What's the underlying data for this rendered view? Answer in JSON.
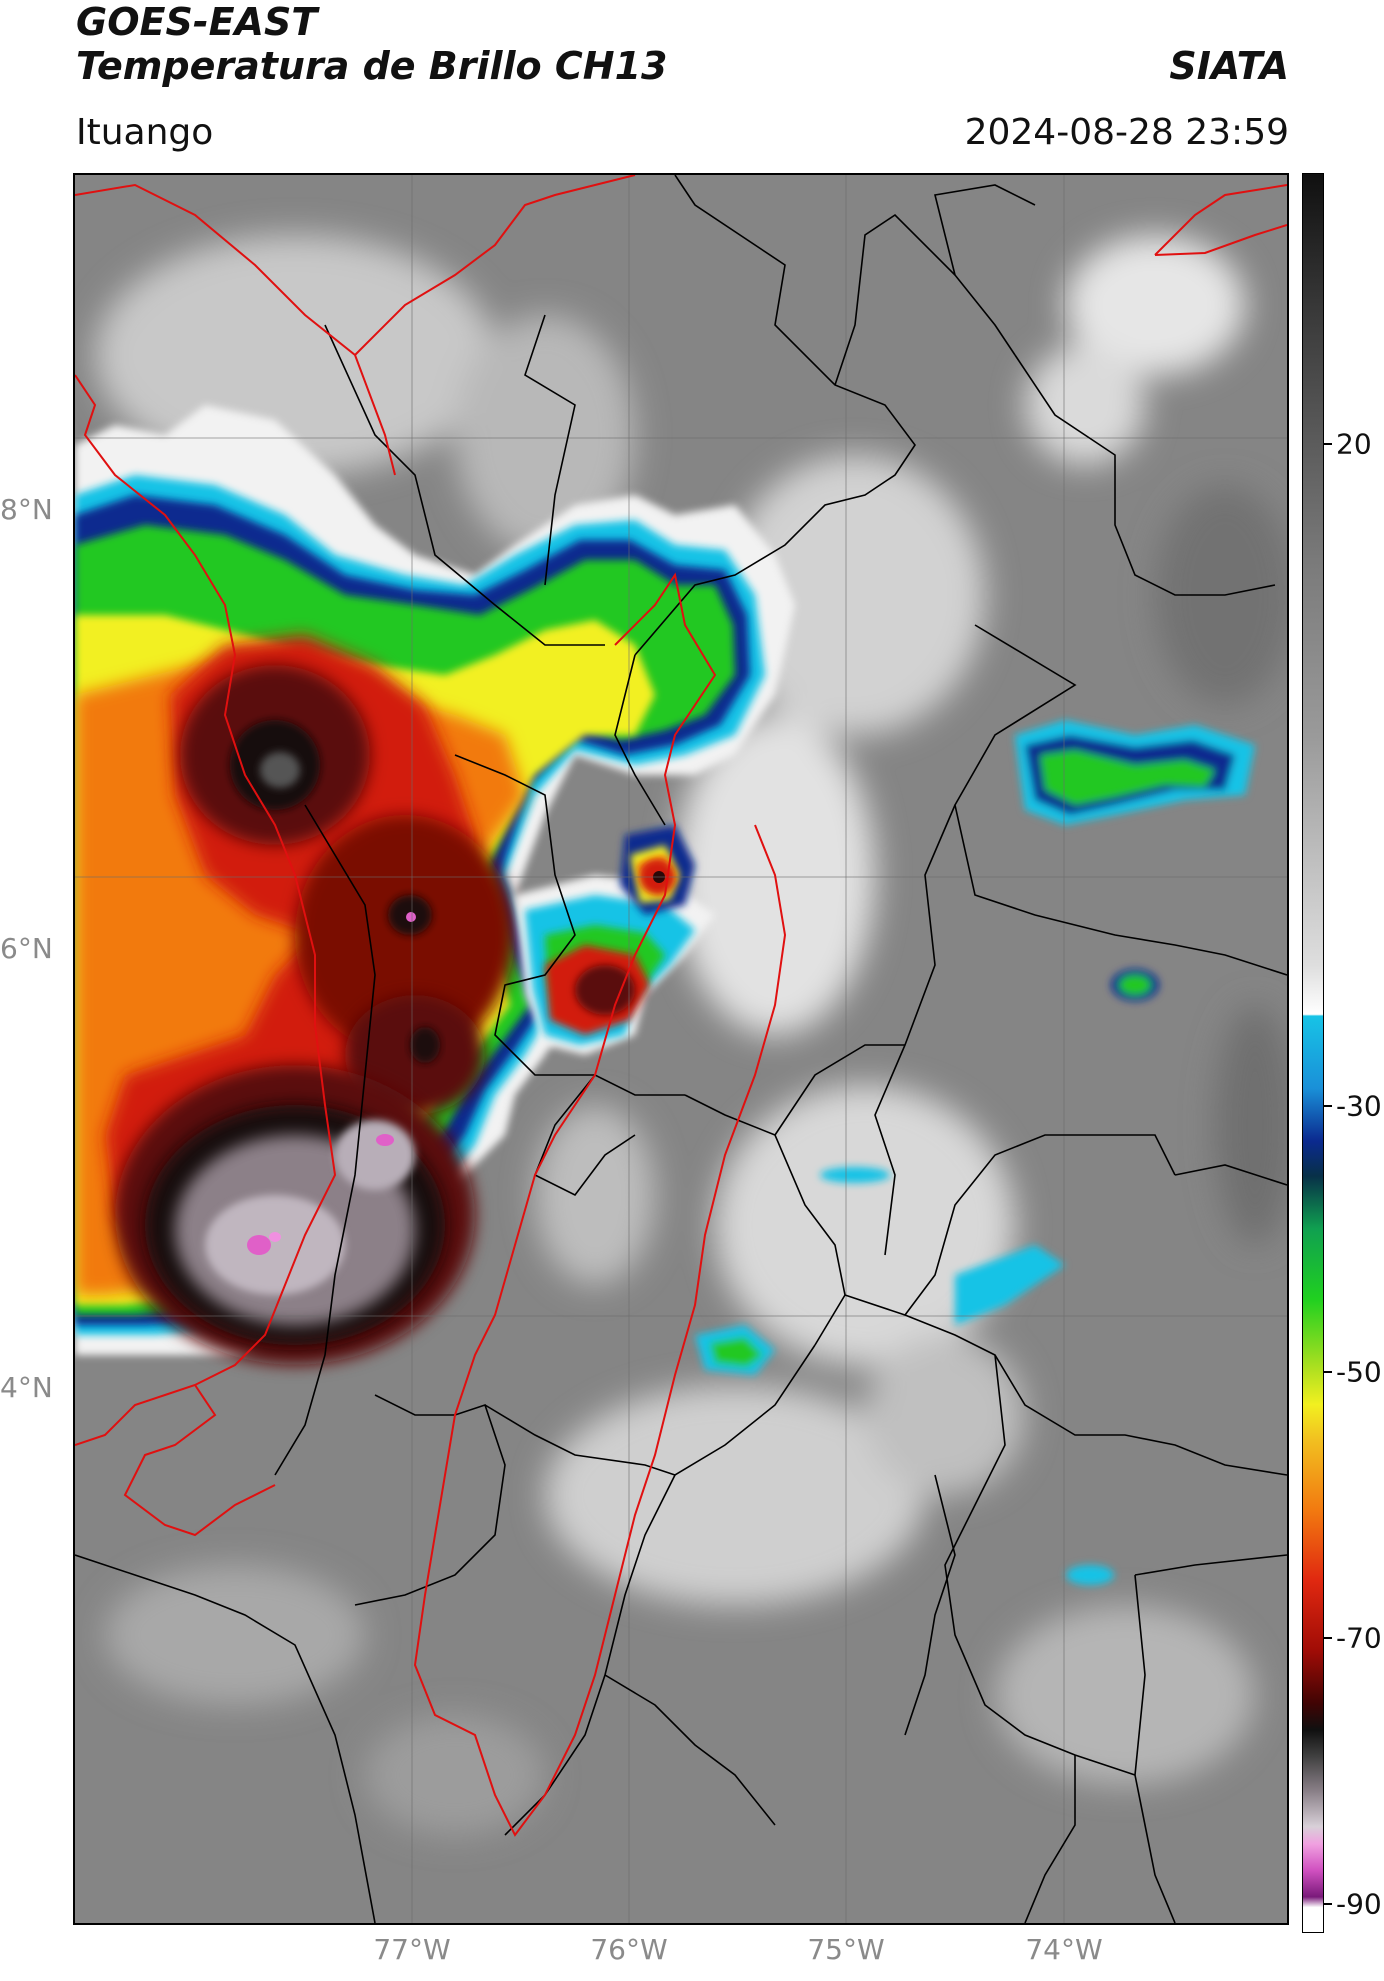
{
  "header": {
    "satellite": "GOES-EAST",
    "product": "Temperatura de Brillo CH13",
    "institution": "SIATA",
    "region": "Ituango",
    "timestamp": "2024-08-28 23:59"
  },
  "map": {
    "lat_ticks": [
      {
        "label": "8°N",
        "value": 8
      },
      {
        "label": "6°N",
        "value": 6
      },
      {
        "label": "4°N",
        "value": 4
      }
    ],
    "lon_ticks": [
      {
        "label": "77°W",
        "value": -77
      },
      {
        "label": "76°W",
        "value": -76
      },
      {
        "label": "75°W",
        "value": -75
      },
      {
        "label": "74°W",
        "value": -74
      }
    ],
    "extent": {
      "lon_min": -78.54,
      "lon_max": -72.96,
      "lat_min": 2.08,
      "lat_max": 10.03
    },
    "grid": true
  },
  "colorbar": {
    "ticks": [
      {
        "label": "20",
        "value": 20
      },
      {
        "label": "-30",
        "value": -30
      },
      {
        "label": "-50",
        "value": -50
      },
      {
        "label": "-70",
        "value": -70
      },
      {
        "label": "-90",
        "value": -90
      }
    ],
    "range": [
      -92,
      42
    ],
    "colors": {
      "warm": "#808080",
      "cold_white": "#f2f2f2",
      "cyan": "#17c3e6",
      "blue": "#0b2a8f",
      "green": "#20c820",
      "yellow": "#f2f020",
      "orange": "#f27a10",
      "red": "#d21a08",
      "darkred": "#5a0808",
      "black": "#101010",
      "grayish": "#b0a8b0",
      "magenta": "#e060c8",
      "purple": "#7a1a7a"
    }
  }
}
